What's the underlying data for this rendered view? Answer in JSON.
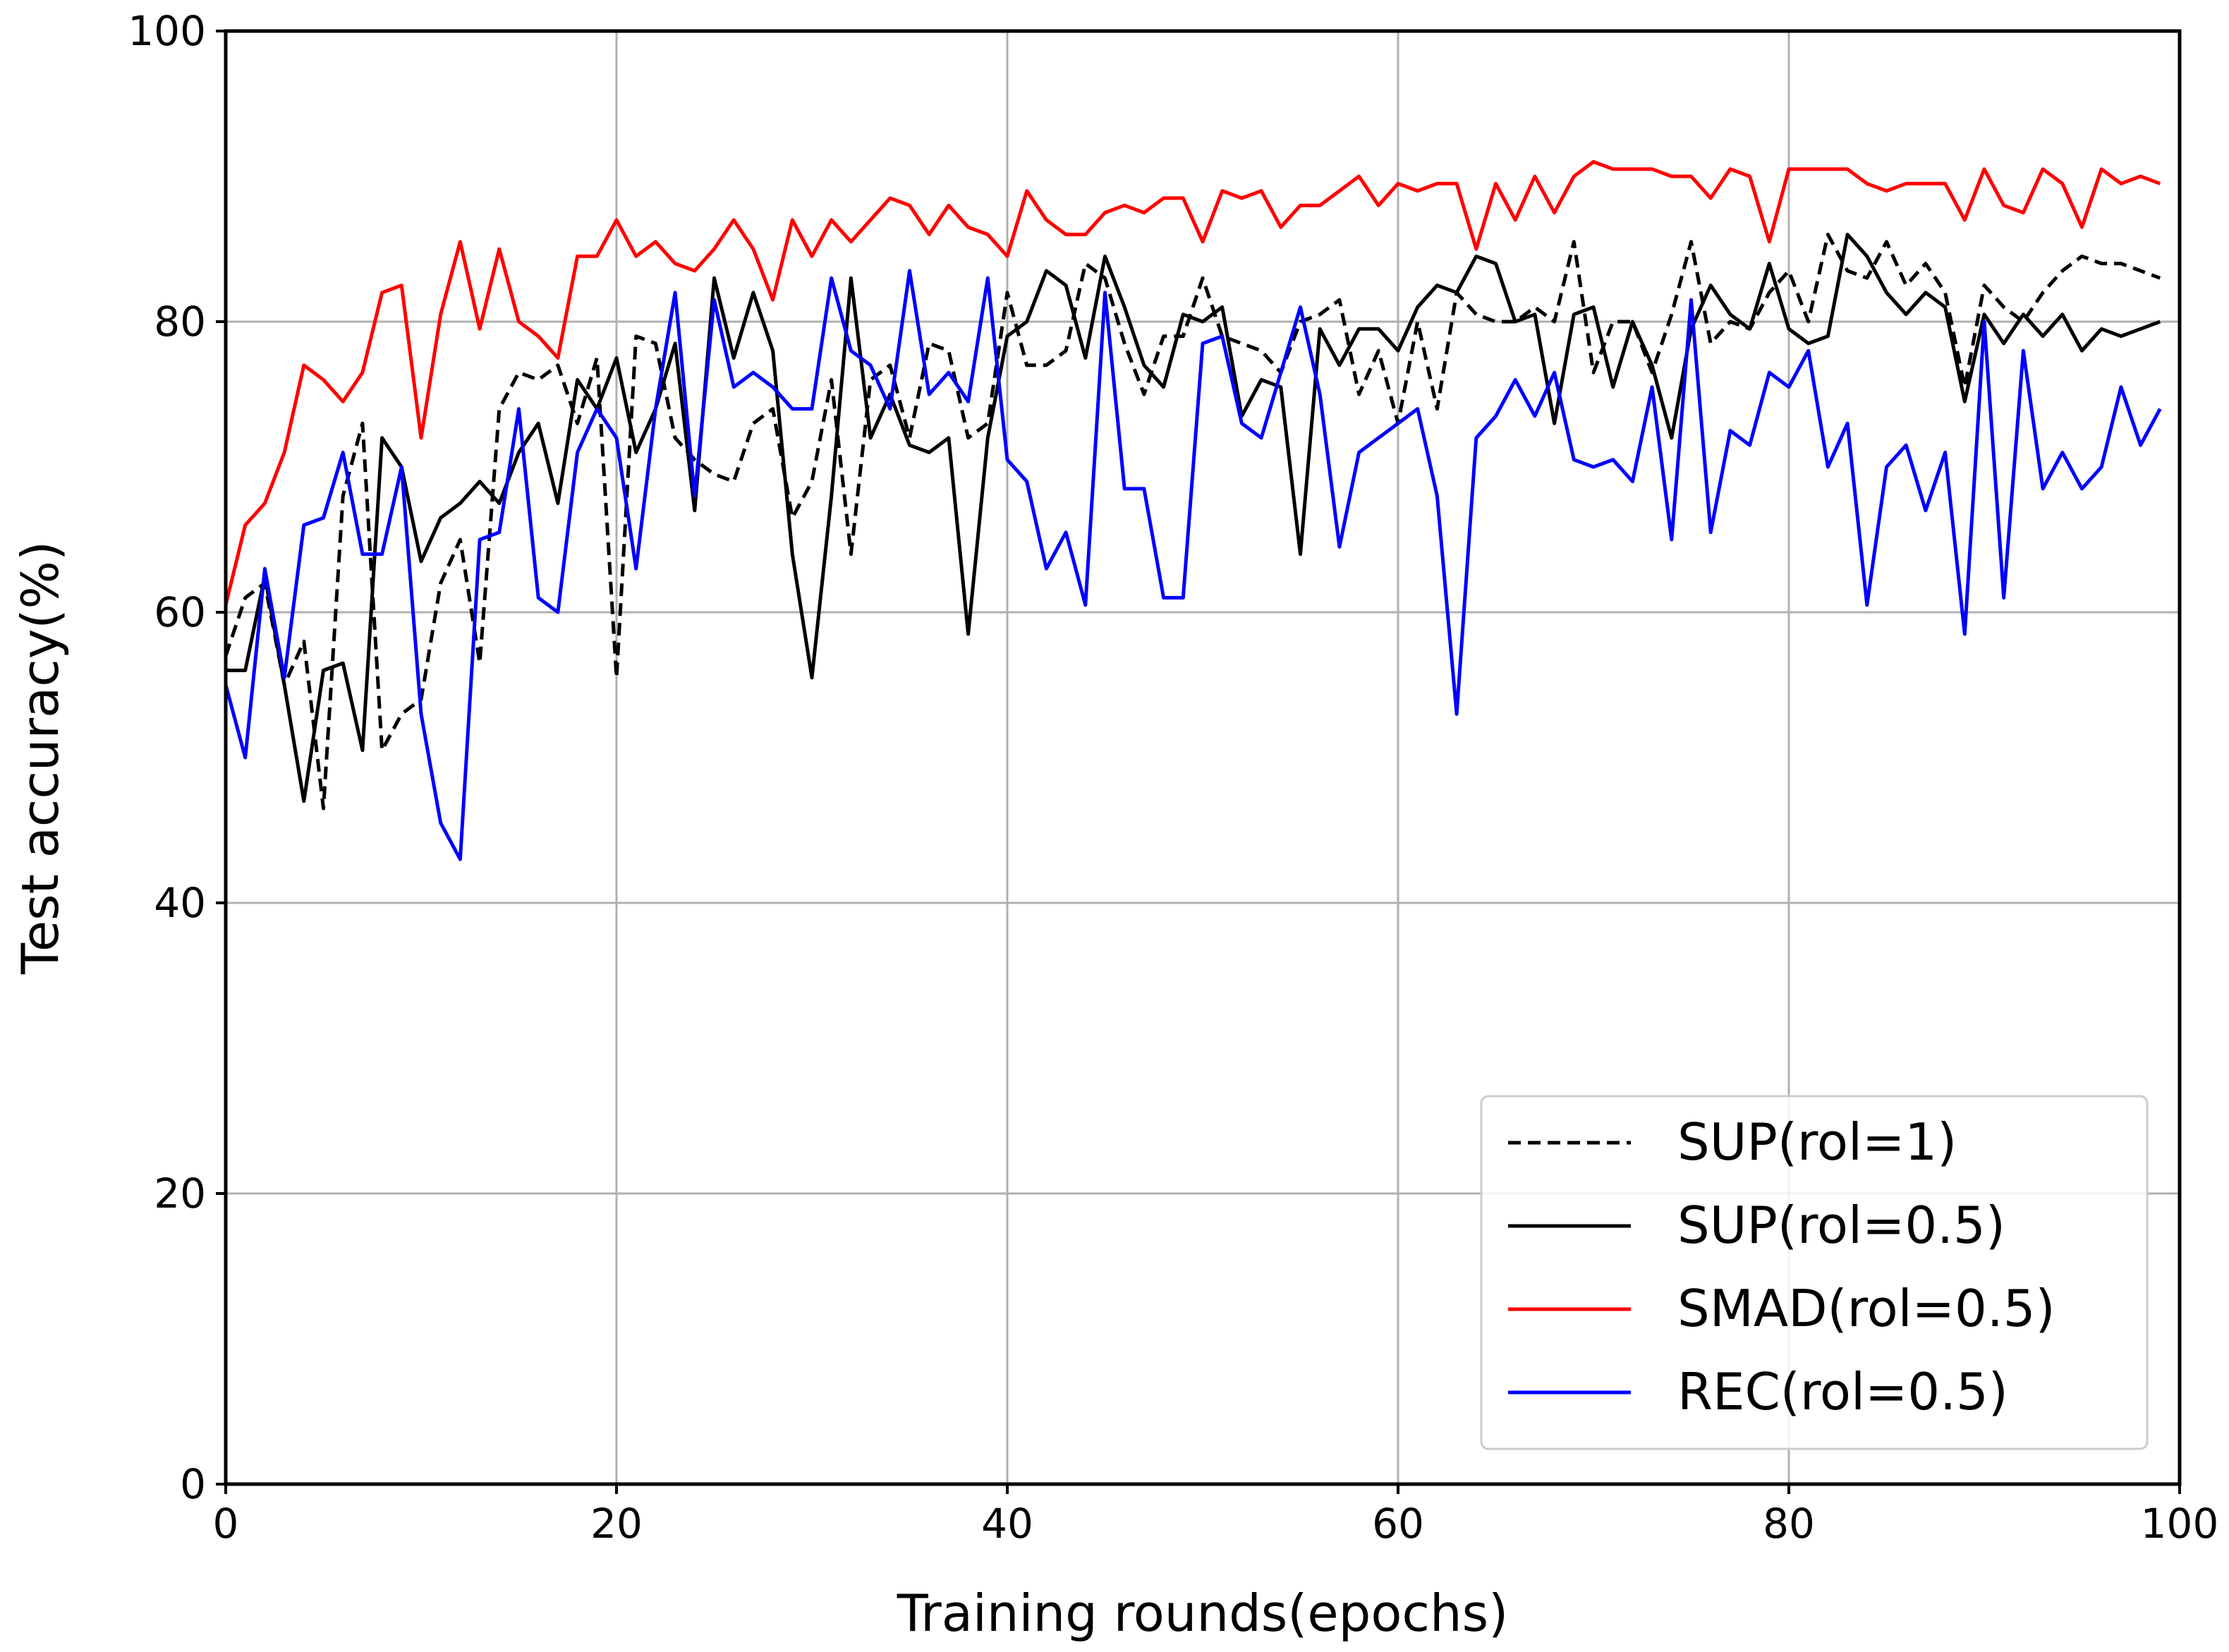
{
  "chart_data": {
    "type": "line",
    "xlabel": "Training rounds(epochs)",
    "ylabel": "Test accuracy(%)",
    "xlim": [
      0,
      100
    ],
    "ylim": [
      0,
      100
    ],
    "x_ticks": [
      "0",
      "20",
      "40",
      "60",
      "80",
      "100"
    ],
    "y_ticks": [
      "0",
      "20",
      "40",
      "60",
      "80",
      "100"
    ],
    "grid": true,
    "legend_position": "bottom-right",
    "series": [
      {
        "name": "SUP(rol=1)",
        "color": "#000000",
        "style": "dashed",
        "x": [
          0,
          1,
          2,
          3,
          4,
          5,
          6,
          7,
          8,
          9,
          10,
          11,
          12,
          13,
          14,
          15,
          16,
          17,
          18,
          19,
          20,
          21,
          22,
          23,
          24,
          25,
          26,
          27,
          28,
          29,
          30,
          31,
          32,
          33,
          34,
          35,
          36,
          37,
          38,
          39,
          40,
          41,
          42,
          43,
          44,
          45,
          46,
          47,
          48,
          49,
          50,
          51,
          52,
          53,
          54,
          55,
          56,
          57,
          58,
          59,
          60,
          61,
          62,
          63,
          64,
          65,
          66,
          67,
          68,
          69,
          70,
          71,
          72,
          73,
          74,
          75,
          76,
          77,
          78,
          79,
          80,
          81,
          82,
          83,
          84,
          85,
          86,
          87,
          88,
          89,
          90,
          91,
          92,
          93,
          94,
          95,
          96,
          97,
          98,
          99
        ],
        "y": [
          57,
          61,
          62,
          55,
          58,
          46.5,
          68,
          73,
          50.5,
          53,
          54,
          62,
          65,
          56.5,
          74,
          76.5,
          76,
          77,
          73,
          77.5,
          55.5,
          79,
          78.5,
          72,
          70.5,
          69.5,
          69,
          73,
          74,
          66.5,
          69,
          76,
          64,
          76,
          77,
          72,
          78.5,
          78,
          72,
          73,
          82,
          77,
          77,
          78,
          84,
          83,
          78.5,
          75,
          79,
          79,
          83,
          79,
          78.5,
          78,
          76.5,
          80,
          80.5,
          81.5,
          75,
          78,
          73,
          80,
          74,
          82,
          80.5,
          80,
          80,
          81,
          80,
          85.5,
          76.5,
          80,
          80,
          76.5,
          80.5,
          85.5,
          78.5,
          80,
          79.5,
          82,
          83.5,
          80,
          86,
          83.5,
          83,
          85.5,
          82.5,
          84,
          82,
          75.5,
          82.5,
          81,
          80,
          82,
          83.5,
          84.5,
          84,
          84,
          83.5,
          83
        ]
      },
      {
        "name": "SUP(rol=0.5)",
        "color": "#000000",
        "style": "solid",
        "x": [
          0,
          1,
          2,
          3,
          4,
          5,
          6,
          7,
          8,
          9,
          10,
          11,
          12,
          13,
          14,
          15,
          16,
          17,
          18,
          19,
          20,
          21,
          22,
          23,
          24,
          25,
          26,
          27,
          28,
          29,
          30,
          31,
          32,
          33,
          34,
          35,
          36,
          37,
          38,
          39,
          40,
          41,
          42,
          43,
          44,
          45,
          46,
          47,
          48,
          49,
          50,
          51,
          52,
          53,
          54,
          55,
          56,
          57,
          58,
          59,
          60,
          61,
          62,
          63,
          64,
          65,
          66,
          67,
          68,
          69,
          70,
          71,
          72,
          73,
          74,
          75,
          76,
          77,
          78,
          79,
          80,
          81,
          82,
          83,
          84,
          85,
          86,
          87,
          88,
          89,
          90,
          91,
          92,
          93,
          94,
          95,
          96,
          97,
          98,
          99
        ],
        "y": [
          56,
          56,
          62.5,
          55,
          47,
          56,
          56.5,
          50.5,
          72,
          70,
          63.5,
          66.5,
          67.5,
          69,
          67.5,
          71,
          73,
          67.5,
          76,
          74,
          77.5,
          71,
          74,
          78.5,
          67,
          83,
          77.5,
          82,
          78,
          64,
          55.5,
          68,
          83,
          72,
          75,
          71.5,
          71,
          72,
          58.5,
          72,
          79,
          80,
          83.5,
          82.5,
          77.5,
          84.5,
          81,
          77,
          75.5,
          80.5,
          80,
          81,
          73.5,
          76,
          75.5,
          64,
          79.5,
          77,
          79.5,
          79.5,
          78,
          81,
          82.5,
          82,
          84.5,
          84,
          80,
          80.5,
          73,
          80.5,
          81,
          75.5,
          80,
          77,
          72,
          79.5,
          82.5,
          80.5,
          79.5,
          84,
          79.5,
          78.5,
          79,
          86,
          84.5,
          82,
          80.5,
          82,
          81,
          74.5,
          80.5,
          78.5,
          80.5,
          79,
          80.5,
          78,
          79.5,
          79,
          79.5,
          80
        ]
      },
      {
        "name": "SMAD(rol=0.5)",
        "color": "#ff0000",
        "style": "solid",
        "x": [
          0,
          1,
          2,
          3,
          4,
          5,
          6,
          7,
          8,
          9,
          10,
          11,
          12,
          13,
          14,
          15,
          16,
          17,
          18,
          19,
          20,
          21,
          22,
          23,
          24,
          25,
          26,
          27,
          28,
          29,
          30,
          31,
          32,
          33,
          34,
          35,
          36,
          37,
          38,
          39,
          40,
          41,
          42,
          43,
          44,
          45,
          46,
          47,
          48,
          49,
          50,
          51,
          52,
          53,
          54,
          55,
          56,
          57,
          58,
          59,
          60,
          61,
          62,
          63,
          64,
          65,
          66,
          67,
          68,
          69,
          70,
          71,
          72,
          73,
          74,
          75,
          76,
          77,
          78,
          79,
          80,
          81,
          82,
          83,
          84,
          85,
          86,
          87,
          88,
          89,
          90,
          91,
          92,
          93,
          94,
          95,
          96,
          97,
          98,
          99
        ],
        "y": [
          60.5,
          66,
          67.5,
          71,
          77,
          76,
          74.5,
          76.5,
          82,
          82.5,
          72,
          80.5,
          85.5,
          79.5,
          85,
          80,
          79,
          77.5,
          84.5,
          84.5,
          87,
          84.5,
          85.5,
          84,
          83.5,
          85,
          87,
          85,
          81.5,
          87,
          84.5,
          87,
          85.5,
          87,
          88.5,
          88,
          86,
          88,
          86.5,
          86,
          84.5,
          89,
          87,
          86,
          86,
          87.5,
          88,
          87.5,
          88.5,
          88.5,
          85.5,
          89,
          88.5,
          89,
          86.5,
          88,
          88,
          89,
          90,
          88,
          89.5,
          89,
          89.5,
          89.5,
          85,
          89.5,
          87,
          90,
          87.5,
          90,
          91,
          90.5,
          90.5,
          90.5,
          90,
          90,
          88.5,
          90.5,
          90,
          85.5,
          90.5,
          90.5,
          90.5,
          90.5,
          89.5,
          89,
          89.5,
          89.5,
          89.5,
          87,
          90.5,
          88,
          87.5,
          90.5,
          89.5,
          86.5,
          90.5,
          89.5,
          90,
          89.5
        ]
      },
      {
        "name": "REC(rol=0.5)",
        "color": "#0000ff",
        "style": "solid",
        "x": [
          0,
          1,
          2,
          3,
          4,
          5,
          6,
          7,
          8,
          9,
          10,
          11,
          12,
          13,
          14,
          15,
          16,
          17,
          18,
          19,
          20,
          21,
          22,
          23,
          24,
          25,
          26,
          27,
          28,
          29,
          30,
          31,
          32,
          33,
          34,
          35,
          36,
          37,
          38,
          39,
          40,
          41,
          42,
          43,
          44,
          45,
          46,
          47,
          48,
          49,
          50,
          51,
          52,
          53,
          54,
          55,
          56,
          57,
          58,
          59,
          60,
          61,
          62,
          63,
          64,
          65,
          66,
          67,
          68,
          69,
          70,
          71,
          72,
          73,
          74,
          75,
          76,
          77,
          78,
          79,
          80,
          81,
          82,
          83,
          84,
          85,
          86,
          87,
          88,
          89,
          90,
          91,
          92,
          93,
          94,
          95,
          96,
          97,
          98,
          99
        ],
        "y": [
          55,
          50,
          63,
          55.5,
          66,
          66.5,
          71,
          64,
          64,
          70,
          53,
          45.5,
          43,
          65,
          65.5,
          74,
          61,
          60,
          71,
          74,
          72,
          63,
          74,
          82,
          68,
          81.5,
          75.5,
          76.5,
          75.5,
          74,
          74,
          83,
          78,
          77,
          74,
          83.5,
          75,
          76.5,
          74.5,
          83,
          70.5,
          69,
          63,
          65.5,
          60.5,
          82,
          68.5,
          68.5,
          61,
          61,
          78.5,
          79,
          73,
          72,
          76.5,
          81,
          75,
          64.5,
          71,
          72,
          73,
          74,
          68,
          53,
          72,
          73.5,
          76,
          73.5,
          76.5,
          70.5,
          70,
          70.5,
          69,
          75.5,
          65,
          81.5,
          65.5,
          72.5,
          71.5,
          76.5,
          75.5,
          78,
          70,
          73,
          60.5,
          70,
          71.5,
          67,
          71,
          58.5,
          80,
          61,
          78,
          68.5,
          71,
          68.5,
          70,
          75.5,
          71.5,
          74
        ]
      }
    ]
  }
}
